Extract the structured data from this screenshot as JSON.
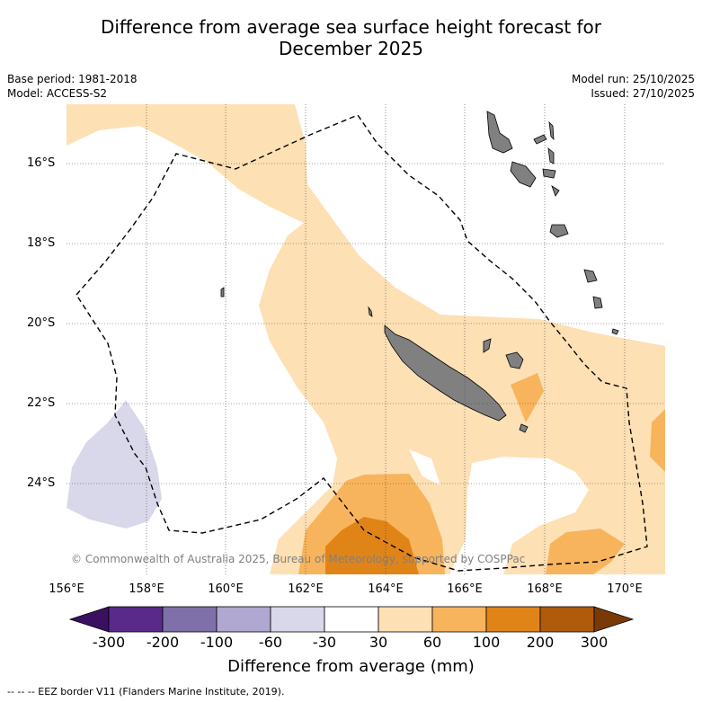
{
  "title_line1": "Difference from average sea surface height forecast for",
  "title_line2": "December 2025",
  "base_period": "Base period: 1981-2018",
  "model": "Model: ACCESS-S2",
  "model_run": "Model run: 25/10/2025",
  "issued": "Issued: 27/10/2025",
  "copyright": "© Commonwealth of Australia 2025, Bureau of Meteorology, supported by COSPPac",
  "lat_ticks": [
    "16°S",
    "18°S",
    "20°S",
    "22°S",
    "24°S"
  ],
  "lon_ticks": [
    "156°E",
    "158°E",
    "160°E",
    "162°E",
    "164°E",
    "166°E",
    "168°E",
    "170°E"
  ],
  "colorbar": {
    "title": "Difference from average (mm)",
    "labels": [
      "-300",
      "-200",
      "-100",
      "-60",
      "-30",
      "30",
      "60",
      "100",
      "200",
      "300"
    ],
    "colors": [
      "#3b1060",
      "#5a2a8a",
      "#8070aa",
      "#b0a8d0",
      "#d8d8ea",
      "#ffffff",
      "#fde0b4",
      "#f8b45c",
      "#e08418",
      "#b05a0c",
      "#7a3a08"
    ]
  },
  "footnote": "-- -- -- EEZ border V11 (Flanders Marine Institute, 2019)."
}
